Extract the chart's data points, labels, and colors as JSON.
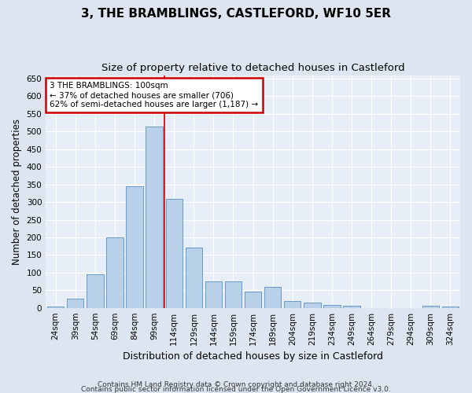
{
  "title": "3, THE BRAMBLINGS, CASTLEFORD, WF10 5ER",
  "subtitle": "Size of property relative to detached houses in Castleford",
  "xlabel": "Distribution of detached houses by size in Castleford",
  "ylabel": "Number of detached properties",
  "categories": [
    "24sqm",
    "39sqm",
    "54sqm",
    "69sqm",
    "84sqm",
    "99sqm",
    "114sqm",
    "129sqm",
    "144sqm",
    "159sqm",
    "174sqm",
    "189sqm",
    "204sqm",
    "219sqm",
    "234sqm",
    "249sqm",
    "264sqm",
    "279sqm",
    "294sqm",
    "309sqm",
    "324sqm"
  ],
  "values": [
    3,
    25,
    95,
    200,
    345,
    515,
    310,
    170,
    75,
    75,
    45,
    60,
    20,
    15,
    8,
    5,
    0,
    0,
    0,
    5,
    3
  ],
  "bar_color": "#b8d0e8",
  "bar_edge_color": "#6699cc",
  "red_line_x": 5.5,
  "highlight_line_color": "#cc0000",
  "annotation_text": "3 THE BRAMBLINGS: 100sqm\n← 37% of detached houses are smaller (706)\n62% of semi-detached houses are larger (1,187) →",
  "annotation_box_color": "#cc0000",
  "background_color": "#dde6f0",
  "plot_background_color": "#e8eef7",
  "ylim": [
    0,
    660
  ],
  "yticks": [
    0,
    50,
    100,
    150,
    200,
    250,
    300,
    350,
    400,
    450,
    500,
    550,
    600,
    650
  ],
  "footer1": "Contains HM Land Registry data © Crown copyright and database right 2024.",
  "footer2": "Contains public sector information licensed under the Open Government Licence v3.0.",
  "title_fontsize": 11,
  "subtitle_fontsize": 9.5,
  "tick_fontsize": 7.5,
  "ylabel_fontsize": 8.5,
  "xlabel_fontsize": 9
}
